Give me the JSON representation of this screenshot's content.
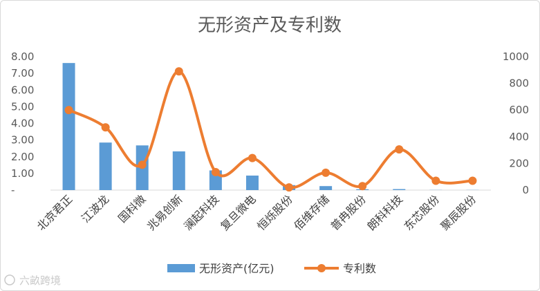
{
  "chart_data": {
    "type": "bar",
    "title": "无形资产及专利数",
    "categories": [
      "北京君正",
      "江波龙",
      "国科微",
      "兆易创新",
      "澜起科技",
      "复旦微电",
      "恒烁股份",
      "佰维存储",
      "普冉股份",
      "朗科科技",
      "东芯股份",
      "聚辰股份"
    ],
    "series": [
      {
        "name": "无形资产(亿元)",
        "type": "bar",
        "axis": "left",
        "color": "#5b9bd5",
        "values": [
          7.62,
          2.85,
          2.68,
          2.32,
          1.18,
          0.87,
          0.3,
          0.24,
          0.05,
          0.06,
          0.01,
          0.01
        ]
      },
      {
        "name": "专利数",
        "type": "line",
        "smooth": true,
        "axis": "right",
        "color": "#ed7d31",
        "values": [
          600,
          470,
          190,
          890,
          135,
          240,
          20,
          130,
          30,
          305,
          70,
          70
        ]
      }
    ],
    "y_left": {
      "ylim": [
        0,
        8
      ],
      "ticks": [
        "-",
        "1.00",
        "2.00",
        "3.00",
        "4.00",
        "5.00",
        "6.00",
        "7.00",
        "8.00"
      ]
    },
    "y_right": {
      "ylim": [
        0,
        1000
      ],
      "ticks": [
        "0",
        "200",
        "400",
        "600",
        "800",
        "1000"
      ]
    },
    "grid": false,
    "legend": "bottom"
  },
  "watermark": "六畝跨境"
}
